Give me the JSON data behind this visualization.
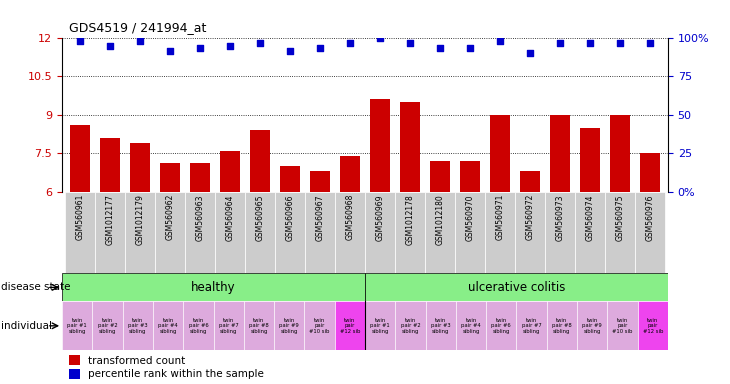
{
  "title": "GDS4519 / 241994_at",
  "samples": [
    "GSM560961",
    "GSM1012177",
    "GSM1012179",
    "GSM560962",
    "GSM560963",
    "GSM560964",
    "GSM560965",
    "GSM560966",
    "GSM560967",
    "GSM560968",
    "GSM560969",
    "GSM1012178",
    "GSM1012180",
    "GSM560970",
    "GSM560971",
    "GSM560972",
    "GSM560973",
    "GSM560974",
    "GSM560975",
    "GSM560976"
  ],
  "bar_values": [
    8.6,
    8.1,
    7.9,
    7.1,
    7.1,
    7.6,
    8.4,
    7.0,
    6.8,
    7.4,
    9.6,
    9.5,
    7.2,
    7.2,
    9.0,
    6.8,
    9.0,
    8.5,
    9.0,
    7.5
  ],
  "dot_values": [
    11.9,
    11.7,
    11.9,
    11.5,
    11.6,
    11.7,
    11.8,
    11.5,
    11.6,
    11.8,
    12.0,
    11.8,
    11.6,
    11.6,
    11.9,
    11.4,
    11.8,
    11.8,
    11.8,
    11.8
  ],
  "ylim_left": [
    6,
    12
  ],
  "yticks_left": [
    6,
    7.5,
    9,
    10.5,
    12
  ],
  "ytick_labels_left": [
    "6",
    "7.5",
    "9",
    "10.5",
    "12"
  ],
  "ylim_right": [
    0,
    100
  ],
  "yticks_right": [
    0,
    25,
    50,
    75,
    100
  ],
  "ytick_labels_right": [
    "0%",
    "25",
    "50",
    "75",
    "100%"
  ],
  "bar_color": "#cc0000",
  "dot_color": "#0000cc",
  "n_healthy": 10,
  "n_colitis": 10,
  "healthy_label": "healthy",
  "colitis_label": "ulcerative colitis",
  "disease_state_label": "disease state",
  "individual_label": "individual",
  "healthy_color": "#88ee88",
  "colitis_color": "#88ee88",
  "ind_color_normal": "#ddaadd",
  "ind_color_highlight": "#ee44ee",
  "ind_highlight_indices": [
    9,
    19
  ],
  "individual_labels": [
    "twin\npair #1\nsibling",
    "twin\npair #2\nsibling",
    "twin\npair #3\nsibling",
    "twin\npair #4\nsibling",
    "twin\npair #6\nsibling",
    "twin\npair #7\nsibling",
    "twin\npair #8\nsibling",
    "twin\npair #9\nsibling",
    "twin\npair\n#10 sib",
    "twin\npair\n#12 sib",
    "twin\npair #1\nsibling",
    "twin\npair #2\nsibling",
    "twin\npair #3\nsibling",
    "twin\npair #4\nsibling",
    "twin\npair #6\nsibling",
    "twin\npair #7\nsibling",
    "twin\npair #8\nsibling",
    "twin\npair #9\nsibling",
    "twin\npair\n#10 sib",
    "twin\npair\n#12 sib"
  ],
  "legend_bar_label": "transformed count",
  "legend_dot_label": "percentile rank within the sample",
  "background_color": "#ffffff",
  "tick_label_bg": "#cccccc",
  "grid_color": "#000000",
  "grid_lw": 0.6
}
